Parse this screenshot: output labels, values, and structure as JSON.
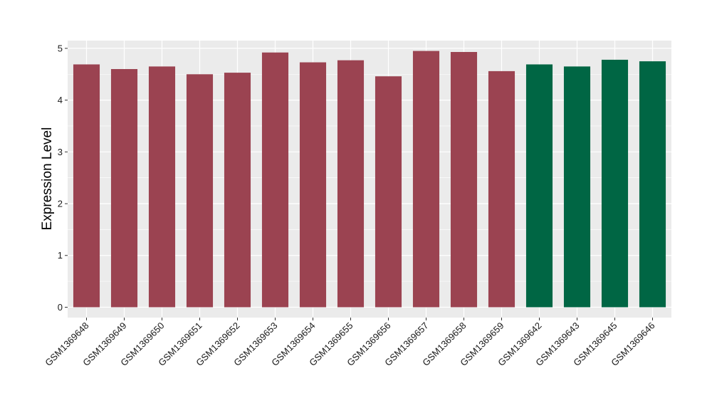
{
  "chart_data": {
    "type": "bar",
    "title": "",
    "xlabel": "",
    "ylabel": "Expression Level",
    "ylim": [
      -0.2,
      5.15
    ],
    "yticks": [
      0,
      1,
      2,
      3,
      4,
      5
    ],
    "grid": true,
    "legend": "none",
    "categories": [
      "GSM1369648",
      "GSM1369649",
      "GSM1369650",
      "GSM1369651",
      "GSM1369652",
      "GSM1369653",
      "GSM1369654",
      "GSM1369655",
      "GSM1369656",
      "GSM1369657",
      "GSM1369658",
      "GSM1369659",
      "GSM1369642",
      "GSM1369643",
      "GSM1369645",
      "GSM1369646"
    ],
    "values": [
      4.69,
      4.6,
      4.65,
      4.5,
      4.53,
      4.92,
      4.73,
      4.77,
      4.46,
      4.95,
      4.93,
      4.56,
      4.69,
      4.65,
      4.78,
      4.75
    ],
    "bar_colors": [
      "#9b4351",
      "#9b4351",
      "#9b4351",
      "#9b4351",
      "#9b4351",
      "#9b4351",
      "#9b4351",
      "#9b4351",
      "#9b4351",
      "#9b4351",
      "#9b4351",
      "#9b4351",
      "#006644",
      "#006644",
      "#006644",
      "#006644"
    ],
    "panel_background": "#ebebeb",
    "grid_color": "#ffffff"
  }
}
